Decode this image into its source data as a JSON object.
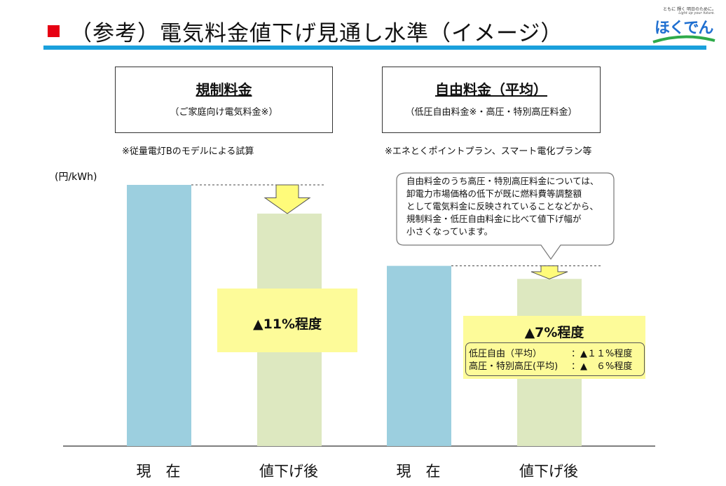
{
  "title": "（参考）電気料金値下げ見通し水準（イメージ）",
  "logo": {
    "tagline": "ともに 輝く 明日のために。",
    "tagline_en": "Light up your future.",
    "brand": "ほくでん"
  },
  "regulated": {
    "heading": "規制料金",
    "subheading": "（ご家庭向け電気料金※）",
    "note": "※従量電灯Bのモデルによる試算",
    "reduction": "▲11%程度"
  },
  "liberalized": {
    "heading": "自由料金（平均）",
    "subheading": "（低圧自由料金※・高圧・特別高圧料金）",
    "note": "※エネとくポイントプラン、スマート電化プラン等",
    "reduction": "▲7%程度",
    "detail": [
      {
        "label": "低圧自由（平均）",
        "value": "：▲１１%程度"
      },
      {
        "label": "高圧・特別高圧(平均)",
        "value": "：▲　６%程度"
      }
    ],
    "callout": [
      "自由料金のうち高圧・特別高圧料金については、",
      "卸電力市場価格の低下が既に燃料費等調整額",
      "として電気料金に反映されていることなどから、",
      "規制料金・低圧自由料金に比べて値下げ幅が",
      "小さくなっています。"
    ]
  },
  "chart_data": {
    "type": "bar",
    "ylabel": "(円/kWh)",
    "categories": [
      "現　在",
      "値下げ後",
      "現　在",
      "値下げ後"
    ],
    "values": [
      100,
      89,
      69,
      64
    ],
    "note": "image (イメージ) – relative bar heights only",
    "colors": {
      "current": "#9ccfdf",
      "after": "#dde8c0",
      "arrow": "#fffb7a",
      "highlight": "#fdfb99"
    }
  }
}
